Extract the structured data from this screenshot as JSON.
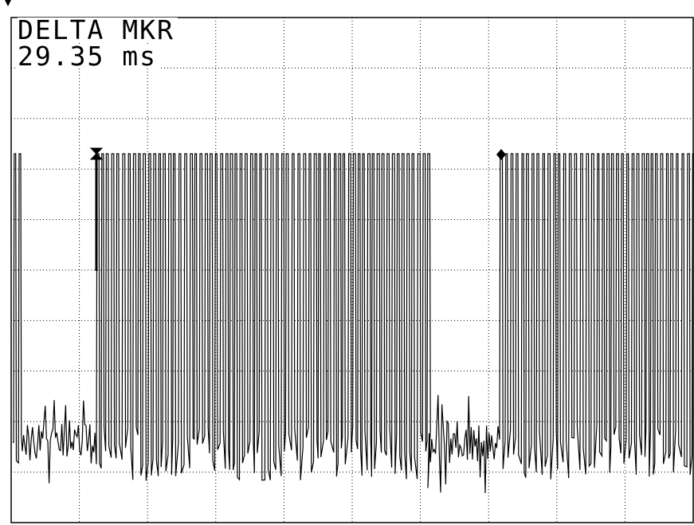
{
  "readout": {
    "title": "DELTA MKR",
    "value": "29.35 ms"
  },
  "display": {
    "grid": true,
    "divisions_x": 10,
    "divisions_y": 10,
    "trace_color": "#000000",
    "grid_color": "#000000",
    "background": "#ffffff"
  },
  "markers": [
    {
      "name": "reference-marker",
      "symbol": "bow-tie"
    },
    {
      "name": "delta-marker",
      "symbol": "diamond"
    }
  ],
  "trace": {
    "description_levels": [
      "high",
      "noise-floor"
    ]
  }
}
